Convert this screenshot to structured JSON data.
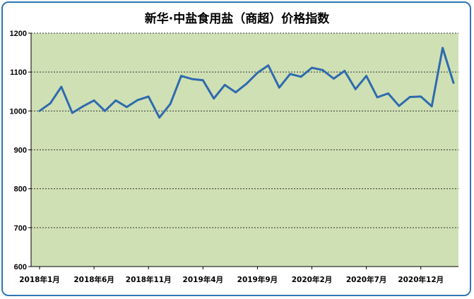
{
  "chart_data": {
    "type": "line",
    "title": "新华·中盐食用盐（商超）价格指数",
    "xlabel": "",
    "ylabel": "",
    "ylim": [
      600,
      1200
    ],
    "yticks": [
      600,
      700,
      800,
      900,
      1000,
      1100,
      1200
    ],
    "grid": true,
    "plot_bg": "#cfe0b4",
    "line_color": "#2e6aae",
    "x_tick_labels": [
      {
        "index": 0,
        "label": "2018年1月"
      },
      {
        "index": 5,
        "label": "2018年6月"
      },
      {
        "index": 10,
        "label": "2018年11月"
      },
      {
        "index": 15,
        "label": "2019年4月"
      },
      {
        "index": 20,
        "label": "2019年9月"
      },
      {
        "index": 25,
        "label": "2020年2月"
      },
      {
        "index": 30,
        "label": "2020年7月"
      },
      {
        "index": 35,
        "label": "2020年12月"
      }
    ],
    "series": [
      {
        "values": [
          1000,
          1020,
          1062,
          995,
          1012,
          1027,
          1000,
          1027,
          1010,
          1028,
          1037,
          983,
          1018,
          1090,
          1082,
          1079,
          1032,
          1067,
          1048,
          1070,
          1098,
          1117,
          1060,
          1095,
          1088,
          1111,
          1105,
          1083,
          1103,
          1056,
          1090,
          1035,
          1045,
          1013,
          1036,
          1037,
          1012,
          1162,
          1072
        ]
      }
    ]
  }
}
